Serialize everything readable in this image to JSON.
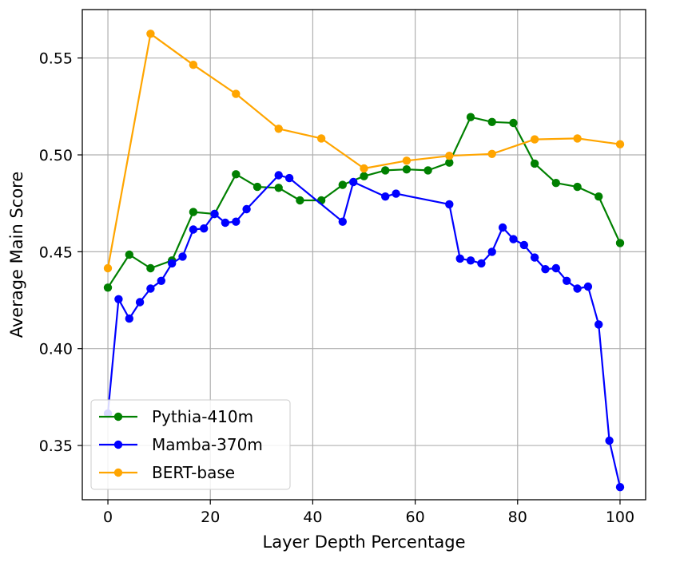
{
  "chart_data": {
    "type": "line",
    "xlabel": "Layer Depth Percentage",
    "ylabel": "Average Main Score",
    "xlim": [
      -5,
      105
    ],
    "ylim": [
      0.322,
      0.575
    ],
    "xticks": [
      0,
      20,
      40,
      60,
      80,
      100
    ],
    "xtick_labels": [
      "0",
      "20",
      "40",
      "60",
      "80",
      "100"
    ],
    "yticks": [
      0.35,
      0.4,
      0.45,
      0.5,
      0.55
    ],
    "ytick_labels": [
      "0.35",
      "0.40",
      "0.45",
      "0.50",
      "0.55"
    ],
    "grid": true,
    "legend_position": "bottom-left",
    "series": [
      {
        "name": "Pythia-410m",
        "color": "#008000",
        "x": [
          0,
          4.17,
          8.33,
          12.5,
          16.67,
          20.83,
          25,
          29.17,
          33.33,
          37.5,
          41.67,
          45.83,
          50,
          54.17,
          58.33,
          62.5,
          66.67,
          70.83,
          75,
          79.17,
          83.33,
          87.5,
          91.67,
          95.83,
          100
        ],
        "y": [
          0.4315,
          0.4485,
          0.4415,
          0.4455,
          0.4705,
          0.4695,
          0.49,
          0.4835,
          0.483,
          0.4765,
          0.4765,
          0.4845,
          0.489,
          0.492,
          0.4925,
          0.492,
          0.496,
          0.5195,
          0.517,
          0.5165,
          0.4955,
          0.4855,
          0.4835,
          0.4785,
          0.4545
        ]
      },
      {
        "name": "Mamba-370m",
        "color": "#0000ff",
        "x": [
          0,
          2.08,
          4.17,
          6.25,
          8.33,
          10.42,
          12.5,
          14.58,
          16.67,
          18.75,
          20.83,
          22.92,
          25,
          27.08,
          33.33,
          35.42,
          37.5,
          45.83,
          47.92,
          54.17,
          56.25,
          66.67,
          68.75,
          70.83,
          72.92,
          75,
          77.08,
          79.17,
          81.25,
          83.33,
          85.42,
          87.5,
          89.58,
          91.67,
          93.75,
          95.83,
          97.92,
          100
        ],
        "y": [
          0.3665,
          0.4255,
          0.4155,
          0.424,
          0.431,
          0.435,
          0.444,
          0.4475,
          0.4615,
          0.462,
          0.4695,
          0.465,
          0.4655,
          0.472,
          0.4895,
          0.488,
          null,
          0.4655,
          0.486,
          0.4785,
          0.48,
          0.4745,
          0.4465,
          0.4455,
          0.444,
          0.45,
          0.4625,
          0.4565,
          0.4535,
          0.447,
          0.441,
          0.4415,
          0.435,
          0.431,
          0.432,
          0.4125,
          0.3525,
          0.3285
        ]
      },
      {
        "name": "BERT-base",
        "color": "#ffa500",
        "x": [
          0,
          8.33,
          16.67,
          25,
          33.33,
          41.67,
          50,
          58.33,
          66.67,
          75,
          83.33,
          91.67,
          100
        ],
        "y": [
          0.4415,
          0.5625,
          0.5465,
          0.5315,
          0.5135,
          0.5085,
          0.493,
          0.497,
          0.4995,
          0.5005,
          0.508,
          0.5085,
          0.5055
        ]
      }
    ]
  }
}
